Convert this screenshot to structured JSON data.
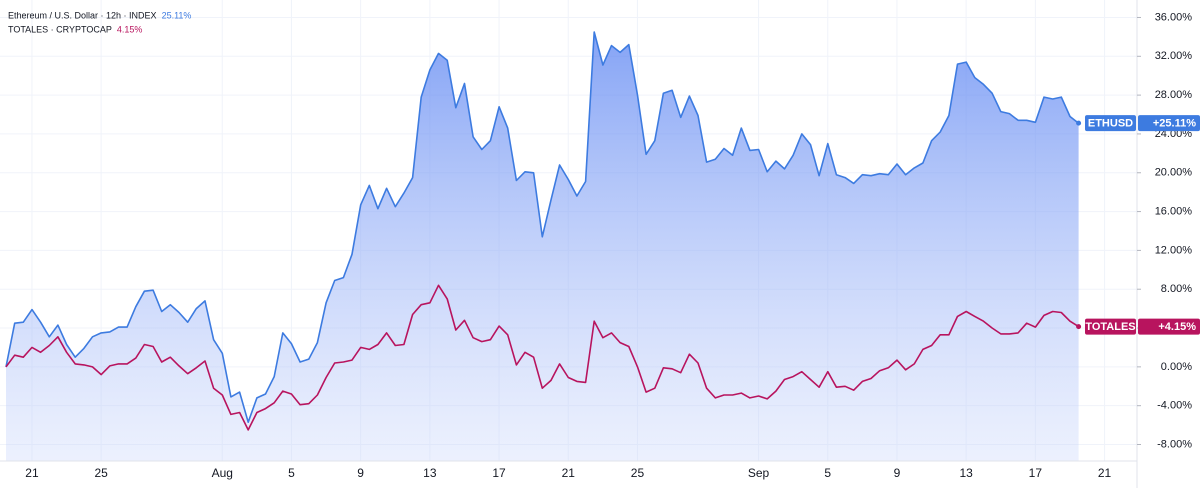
{
  "chart_data": {
    "type": "area-line",
    "categories": [
      null,
      null,
      null,
      "21",
      null,
      null,
      null,
      null,
      null,
      null,
      null,
      "25",
      null,
      null,
      null,
      null,
      null,
      null,
      null,
      null,
      null,
      null,
      null,
      null,
      null,
      "Aug",
      null,
      null,
      null,
      null,
      null,
      null,
      null,
      "5",
      null,
      null,
      null,
      null,
      null,
      null,
      null,
      "9",
      null,
      null,
      null,
      null,
      null,
      null,
      null,
      "13",
      null,
      null,
      null,
      null,
      null,
      null,
      null,
      "17",
      null,
      null,
      null,
      null,
      null,
      null,
      null,
      "21",
      null,
      null,
      null,
      null,
      null,
      null,
      null,
      "25",
      null,
      null,
      null,
      null,
      null,
      null,
      null,
      null,
      null,
      null,
      null,
      null,
      null,
      "Sep",
      null,
      null,
      null,
      null,
      null,
      null,
      null,
      "5",
      null,
      null,
      null,
      null,
      null,
      null,
      null,
      "9",
      null,
      null,
      null,
      null,
      null,
      null,
      null,
      "13",
      null,
      null,
      null,
      null,
      null,
      null,
      null,
      "17",
      null,
      null,
      null,
      null,
      null,
      null,
      null,
      "21"
    ],
    "series": [
      {
        "name": "ETHUSD",
        "legend_label": "Ethereum / U.S. Dollar · 12h · INDEX",
        "legend_value_label": "25.11%",
        "badge_value_label": "+25.11%",
        "color": "#3d7be0",
        "fill": true,
        "values": [
          0,
          4.5,
          4.6,
          5.9,
          4.6,
          3.1,
          4.3,
          2.3,
          1.0,
          1.9,
          3.1,
          3.5,
          3.6,
          4.1,
          4.1,
          6.2,
          7.8,
          7.9,
          5.7,
          6.4,
          5.6,
          4.6,
          6.0,
          6.8,
          2.8,
          1.4,
          -3.1,
          -2.6,
          -5.7,
          -3.2,
          -2.8,
          -1.0,
          3.5,
          2.4,
          0.5,
          0.8,
          2.5,
          6.6,
          8.9,
          9.2,
          11.6,
          16.7,
          18.7,
          16.3,
          18.4,
          16.5,
          17.9,
          19.5,
          27.8,
          30.6,
          32.3,
          31.6,
          26.7,
          29.2,
          23.7,
          22.4,
          23.3,
          26.8,
          24.6,
          19.2,
          20.1,
          20.0,
          13.4,
          17.2,
          20.8,
          19.3,
          17.6,
          19.1,
          34.5,
          31.1,
          33.1,
          32.4,
          33.2,
          28.0,
          21.9,
          23.3,
          28.2,
          28.5,
          25.7,
          27.9,
          25.9,
          21.1,
          21.4,
          22.5,
          21.8,
          24.6,
          22.3,
          22.4,
          20.1,
          21.2,
          20.4,
          21.8,
          24.0,
          22.9,
          19.7,
          23.0,
          19.8,
          19.5,
          18.9,
          19.8,
          19.7,
          19.9,
          19.8,
          20.9,
          19.8,
          20.5,
          21.0,
          23.3,
          24.2,
          25.9,
          31.2,
          31.4,
          29.8,
          29.1,
          28.2,
          26.3,
          26.1,
          25.4,
          25.4,
          25.2,
          27.8,
          27.6,
          27.8,
          25.8,
          25.11,
          null,
          null,
          null
        ]
      },
      {
        "name": "TOTALES",
        "legend_label": "TOTALES · CRYPTOCAP",
        "legend_value_label": "4.15%",
        "badge_value_label": "+4.15%",
        "color": "#b8145e",
        "fill": false,
        "values": [
          0,
          1.2,
          1.0,
          2.0,
          1.5,
          2.2,
          3.1,
          1.5,
          0.3,
          0.2,
          0.0,
          -0.8,
          0.1,
          0.3,
          0.3,
          0.9,
          2.3,
          2.1,
          0.5,
          1.0,
          0.1,
          -0.7,
          -0.1,
          0.6,
          -2.2,
          -2.9,
          -4.9,
          -4.7,
          -6.5,
          -4.7,
          -4.3,
          -3.7,
          -2.5,
          -2.8,
          -3.9,
          -3.8,
          -2.9,
          -1.1,
          0.4,
          0.5,
          0.7,
          2.0,
          1.8,
          2.3,
          3.5,
          2.2,
          2.3,
          5.4,
          6.4,
          6.6,
          8.4,
          7.0,
          3.8,
          4.8,
          3.0,
          2.6,
          2.8,
          4.2,
          3.3,
          0.2,
          1.5,
          1.0,
          -2.2,
          -1.4,
          0.3,
          -1.1,
          -1.5,
          -1.6,
          4.7,
          3.0,
          3.5,
          2.5,
          2.1,
          0.0,
          -2.6,
          -2.2,
          -0.1,
          -0.2,
          -0.6,
          1.3,
          0.4,
          -2.2,
          -3.2,
          -2.9,
          -2.9,
          -2.7,
          -3.2,
          -3.0,
          -3.3,
          -2.5,
          -1.3,
          -1.0,
          -0.5,
          -1.3,
          -2.1,
          -0.5,
          -2.1,
          -2.0,
          -2.4,
          -1.5,
          -1.2,
          -0.4,
          -0.1,
          0.7,
          -0.3,
          0.3,
          1.8,
          2.2,
          3.3,
          3.3,
          5.2,
          5.7,
          5.2,
          4.7,
          4.0,
          3.4,
          3.4,
          3.5,
          4.5,
          4.1,
          5.3,
          5.7,
          5.6,
          4.7,
          4.15,
          null,
          null,
          null
        ]
      }
    ],
    "ylim": [
      -9.7,
      37.8
    ],
    "yticks": [
      {
        "value": 36,
        "label": "36.00%"
      },
      {
        "value": 32,
        "label": "32.00%"
      },
      {
        "value": 28,
        "label": "28.00%"
      },
      {
        "value": 24,
        "label": "24.00%"
      },
      {
        "value": 20,
        "label": "20.00%"
      },
      {
        "value": 16,
        "label": "16.00%"
      },
      {
        "value": 12,
        "label": "12.00%"
      },
      {
        "value": 8,
        "label": "8.00%"
      },
      {
        "value": 4,
        "label": "4.00%"
      },
      {
        "value": 0,
        "label": "0.00%"
      },
      {
        "value": -4,
        "label": "-4.00%"
      },
      {
        "value": -8,
        "label": "-8.00%"
      }
    ],
    "grid": true,
    "legend_position": "top-left"
  }
}
